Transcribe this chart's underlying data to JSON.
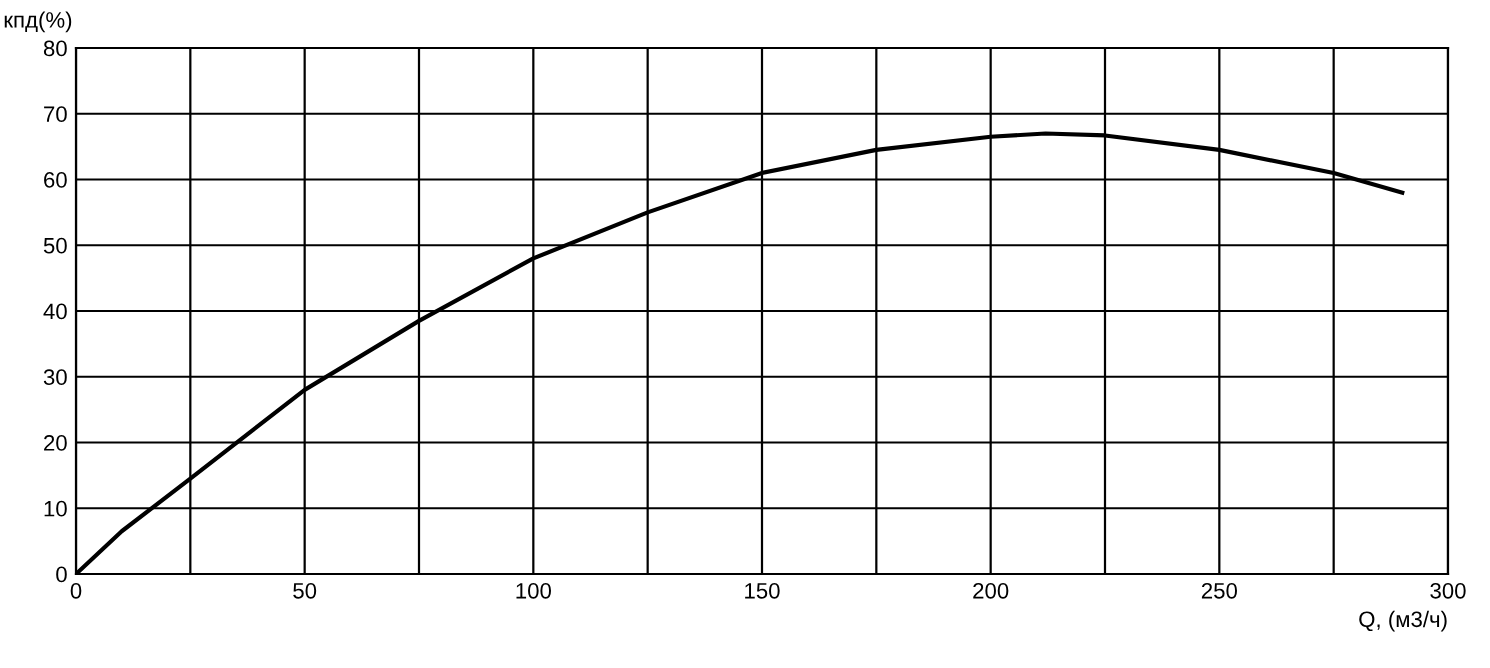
{
  "chart_data": {
    "type": "line",
    "xlabel": "Q, (м3/ч)",
    "ylabel": "кпд(%)",
    "x": [
      0,
      10,
      25,
      50,
      75,
      100,
      125,
      150,
      175,
      200,
      212,
      225,
      250,
      275,
      290
    ],
    "series": [
      {
        "color": "#000000",
        "values": [
          0,
          6.5,
          14.5,
          28,
          38.5,
          48,
          55,
          61,
          64.5,
          66.5,
          67,
          66.7,
          64.5,
          61,
          58
        ]
      }
    ],
    "xlim": [
      0,
      300
    ],
    "ylim": [
      0,
      80
    ],
    "xticks": [
      0,
      {
        "value": 25,
        "label": null
      },
      50,
      {
        "value": 75,
        "label": null
      },
      100,
      {
        "value": 125,
        "label": null
      },
      150,
      {
        "value": 175,
        "label": null
      },
      200,
      {
        "value": 225,
        "label": null
      },
      250,
      {
        "value": 275,
        "label": null
      },
      300
    ],
    "yticks": [
      0,
      10,
      20,
      30,
      40,
      50,
      60,
      70,
      80
    ],
    "grid": true,
    "marker": "none",
    "line_style": "solid"
  }
}
